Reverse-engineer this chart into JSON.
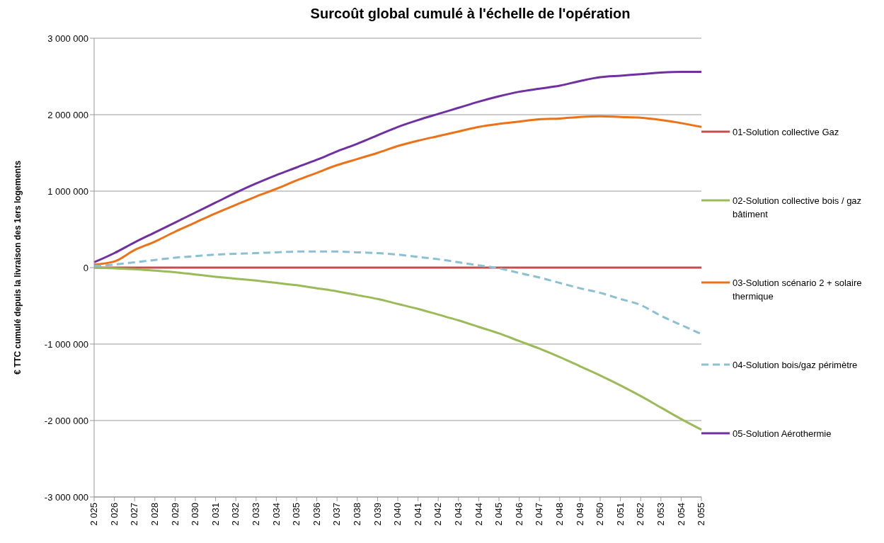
{
  "chart_data": {
    "type": "line",
    "title": "Surcoût global cumulé à l'échelle de l'opération",
    "ylabel": "€ TTC cumulé depuis la livraison des 1ers logements",
    "categories": [
      "2 025",
      "2 026",
      "2 027",
      "2 028",
      "2 029",
      "2 030",
      "2 031",
      "2 032",
      "2 033",
      "2 034",
      "2 035",
      "2 036",
      "2 037",
      "2 038",
      "2 039",
      "2 040",
      "2 041",
      "2 042",
      "2 043",
      "2 044",
      "2 045",
      "2 046",
      "2 047",
      "2 048",
      "2 049",
      "2 050",
      "2 051",
      "2 052",
      "2 053",
      "2 054",
      "2 055"
    ],
    "series": [
      {
        "name": "01-Solution collective Gaz",
        "color": "#c0504d",
        "line_style": "solid",
        "values": [
          0,
          0,
          0,
          0,
          0,
          0,
          0,
          0,
          0,
          0,
          0,
          0,
          0,
          0,
          0,
          0,
          0,
          0,
          0,
          0,
          0,
          0,
          0,
          0,
          0,
          0,
          0,
          0,
          0,
          0,
          0
        ]
      },
      {
        "name": "02-Solution collective bois / gaz bâtiment",
        "color": "#9bbb59",
        "line_style": "solid",
        "values": [
          0,
          -10000,
          -20000,
          -40000,
          -60000,
          -90000,
          -120000,
          -145000,
          -170000,
          -200000,
          -230000,
          -270000,
          -310000,
          -360000,
          -410000,
          -475000,
          -540000,
          -615000,
          -690000,
          -775000,
          -860000,
          -960000,
          -1060000,
          -1170000,
          -1290000,
          -1410000,
          -1540000,
          -1680000,
          -1830000,
          -1980000,
          -2120000
        ]
      },
      {
        "name": "03-Solution scénario 2 + solaire thermique",
        "color": "#ed7117",
        "line_style": "solid",
        "values": [
          40000,
          80000,
          230000,
          340000,
          470000,
          590000,
          710000,
          820000,
          930000,
          1030000,
          1140000,
          1240000,
          1340000,
          1420000,
          1500000,
          1590000,
          1660000,
          1720000,
          1780000,
          1840000,
          1880000,
          1910000,
          1940000,
          1950000,
          1970000,
          1980000,
          1970000,
          1960000,
          1930000,
          1890000,
          1840000
        ]
      },
      {
        "name": "04-Solution bois/gaz périmètre",
        "color": "#8ac0d4",
        "line_style": "dashed",
        "values": [
          20000,
          40000,
          70000,
          100000,
          130000,
          150000,
          170000,
          180000,
          190000,
          200000,
          210000,
          210000,
          210000,
          200000,
          190000,
          170000,
          140000,
          110000,
          70000,
          30000,
          -10000,
          -70000,
          -130000,
          -200000,
          -270000,
          -330000,
          -410000,
          -490000,
          -630000,
          -750000,
          -870000
        ]
      },
      {
        "name": "05-Solution Aérothermie",
        "color": "#7030a0",
        "line_style": "solid",
        "values": [
          70000,
          190000,
          330000,
          460000,
          590000,
          720000,
          850000,
          980000,
          1100000,
          1210000,
          1310000,
          1410000,
          1520000,
          1620000,
          1730000,
          1840000,
          1930000,
          2010000,
          2090000,
          2170000,
          2240000,
          2300000,
          2340000,
          2380000,
          2440000,
          2490000,
          2510000,
          2530000,
          2550000,
          2560000,
          2560000
        ]
      }
    ],
    "ylim": [
      -3000000,
      3000000
    ],
    "yticks": [
      -3000000,
      -2000000,
      -1000000,
      0,
      1000000,
      2000000,
      3000000
    ],
    "grid": "y",
    "legend": "right",
    "marker": "none"
  }
}
